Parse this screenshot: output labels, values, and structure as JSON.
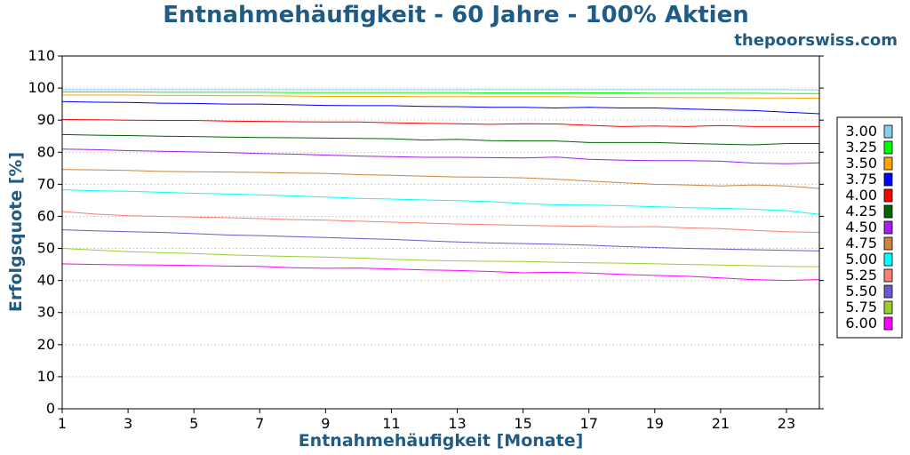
{
  "chart_data": {
    "type": "line",
    "title": "Entnahmehäufigkeit - 60 Jahre - 100% Aktien",
    "subtitle": "thepoorswiss.com",
    "xlabel": "Entnahmehäufigkeit [Monate]",
    "ylabel": "Erfolgsquote [%]",
    "xlim": [
      1,
      24
    ],
    "ylim": [
      0,
      110
    ],
    "xticks": [
      1,
      3,
      5,
      7,
      9,
      11,
      13,
      15,
      17,
      19,
      21,
      23
    ],
    "yticks": [
      0,
      10,
      20,
      30,
      40,
      50,
      60,
      70,
      80,
      90,
      100,
      110
    ],
    "grid": "horizontal-dotted",
    "legend_position": "right",
    "x": [
      1,
      2,
      3,
      4,
      5,
      6,
      7,
      8,
      9,
      10,
      11,
      12,
      13,
      14,
      15,
      16,
      17,
      18,
      19,
      20,
      21,
      22,
      23,
      24
    ],
    "series": [
      {
        "name": "3.00",
        "color": "#87ceeb",
        "values": [
          99.5,
          99.5,
          99.5,
          99.5,
          99.5,
          99.5,
          99.5,
          99.5,
          99.5,
          99.5,
          99.5,
          99.5,
          99.5,
          99.5,
          99.5,
          99.5,
          99.5,
          99.5,
          99.5,
          99.5,
          99.5,
          99.5,
          99.5,
          99.4
        ]
      },
      {
        "name": "3.25",
        "color": "#00ff00",
        "values": [
          98.8,
          98.8,
          98.8,
          98.7,
          98.7,
          98.7,
          98.7,
          98.6,
          98.6,
          98.6,
          98.6,
          98.6,
          98.6,
          98.5,
          98.5,
          98.5,
          98.5,
          98.5,
          98.4,
          98.4,
          98.4,
          98.4,
          98.3,
          98.3
        ]
      },
      {
        "name": "3.50",
        "color": "#ffa500",
        "values": [
          97.8,
          97.8,
          97.8,
          97.7,
          97.7,
          97.6,
          97.6,
          97.5,
          97.4,
          97.4,
          97.4,
          97.3,
          97.3,
          97.3,
          97.3,
          97.3,
          97.2,
          97.1,
          97.1,
          97.0,
          97.0,
          96.9,
          96.9,
          96.8
        ]
      },
      {
        "name": "3.75",
        "color": "#0000ff",
        "values": [
          95.8,
          95.6,
          95.5,
          95.3,
          95.2,
          95.0,
          95.0,
          94.8,
          94.6,
          94.5,
          94.5,
          94.3,
          94.2,
          94.0,
          94.0,
          93.8,
          94.0,
          93.8,
          93.8,
          93.5,
          93.2,
          93.0,
          92.5,
          92.0
        ]
      },
      {
        "name": "4.00",
        "color": "#ff0000",
        "values": [
          90.2,
          90.1,
          90.0,
          89.9,
          89.9,
          89.7,
          89.6,
          89.5,
          89.4,
          89.4,
          89.2,
          89.0,
          88.9,
          88.7,
          88.9,
          88.8,
          88.4,
          88.0,
          88.2,
          88.0,
          88.3,
          88.0,
          88.0,
          88.0
        ]
      },
      {
        "name": "4.25",
        "color": "#006400",
        "values": [
          85.5,
          85.3,
          85.2,
          85.0,
          84.9,
          84.7,
          84.6,
          84.5,
          84.4,
          84.3,
          84.2,
          83.8,
          84.0,
          83.6,
          83.5,
          83.5,
          83.0,
          83.0,
          83.0,
          82.7,
          82.5,
          82.3,
          82.7,
          82.7
        ]
      },
      {
        "name": "4.50",
        "color": "#a020f0",
        "values": [
          81.0,
          80.8,
          80.5,
          80.3,
          80.1,
          79.9,
          79.6,
          79.4,
          79.1,
          78.8,
          78.6,
          78.4,
          78.4,
          78.3,
          78.2,
          78.5,
          77.8,
          77.5,
          77.4,
          77.4,
          77.2,
          76.6,
          76.4,
          76.7
        ]
      },
      {
        "name": "4.75",
        "color": "#cd853f",
        "values": [
          74.6,
          74.5,
          74.3,
          74.0,
          73.9,
          73.8,
          73.7,
          73.5,
          73.4,
          73.0,
          72.8,
          72.5,
          72.3,
          72.2,
          72.0,
          71.6,
          71.0,
          70.5,
          70.0,
          69.8,
          69.5,
          69.8,
          69.5,
          68.7
        ]
      },
      {
        "name": "5.00",
        "color": "#00ffff",
        "values": [
          68.3,
          68.0,
          67.8,
          67.5,
          67.2,
          67.0,
          66.7,
          66.4,
          66.0,
          65.6,
          65.4,
          65.1,
          64.9,
          64.6,
          64.0,
          63.6,
          63.5,
          63.3,
          63.0,
          62.7,
          62.5,
          62.2,
          61.8,
          60.6
        ]
      },
      {
        "name": "5.25",
        "color": "#fa8072",
        "values": [
          61.5,
          60.7,
          60.2,
          60.0,
          59.8,
          59.6,
          59.3,
          59.0,
          58.8,
          58.5,
          58.2,
          57.9,
          57.6,
          57.4,
          57.2,
          57.0,
          56.9,
          56.7,
          56.8,
          56.4,
          56.2,
          55.6,
          55.2,
          55.0
        ]
      },
      {
        "name": "5.50",
        "color": "#6a5acd",
        "values": [
          55.8,
          55.5,
          55.2,
          55.0,
          54.6,
          54.2,
          54.0,
          53.7,
          53.4,
          53.1,
          52.8,
          52.4,
          52.0,
          51.7,
          51.5,
          51.3,
          51.0,
          50.6,
          50.3,
          50.0,
          49.8,
          49.6,
          49.4,
          49.2
        ]
      },
      {
        "name": "5.75",
        "color": "#9acd32",
        "values": [
          50.0,
          49.5,
          49.0,
          48.7,
          48.4,
          48.0,
          47.7,
          47.5,
          47.3,
          47.0,
          46.6,
          46.3,
          46.1,
          46.0,
          45.9,
          45.7,
          45.5,
          45.4,
          45.2,
          45.0,
          44.8,
          44.6,
          44.4,
          44.3
        ]
      },
      {
        "name": "6.00",
        "color": "#ff00ff",
        "values": [
          45.2,
          45.0,
          44.9,
          44.8,
          44.7,
          44.5,
          44.4,
          44.0,
          43.8,
          43.9,
          43.6,
          43.3,
          43.1,
          42.8,
          42.4,
          42.6,
          42.3,
          41.9,
          41.6,
          41.3,
          40.8,
          40.3,
          40.0,
          40.3
        ]
      }
    ]
  }
}
